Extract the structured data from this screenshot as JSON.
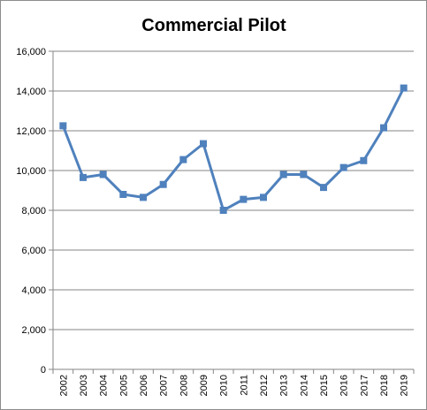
{
  "chart_data": {
    "type": "line",
    "title": "Commercial Pilot",
    "xlabel": "",
    "ylabel": "",
    "categories": [
      "2002",
      "2003",
      "2004",
      "2005",
      "2006",
      "2007",
      "2008",
      "2009",
      "2010",
      "2011",
      "2012",
      "2013",
      "2014",
      "2015",
      "2016",
      "2017",
      "2018",
      "2019"
    ],
    "series": [
      {
        "values": [
          12250,
          9650,
          9800,
          8800,
          8650,
          9300,
          10550,
          11350,
          8000,
          8550,
          8650,
          9800,
          9800,
          9150,
          10150,
          10500,
          12150,
          14150
        ],
        "color": "#4f81bd"
      }
    ],
    "ylim": [
      0,
      16000
    ],
    "yticks": [
      "0",
      "2,000",
      "4,000",
      "6,000",
      "8,000",
      "10,000",
      "12,000",
      "14,000",
      "16,000"
    ],
    "grid": true,
    "legend": "none"
  }
}
